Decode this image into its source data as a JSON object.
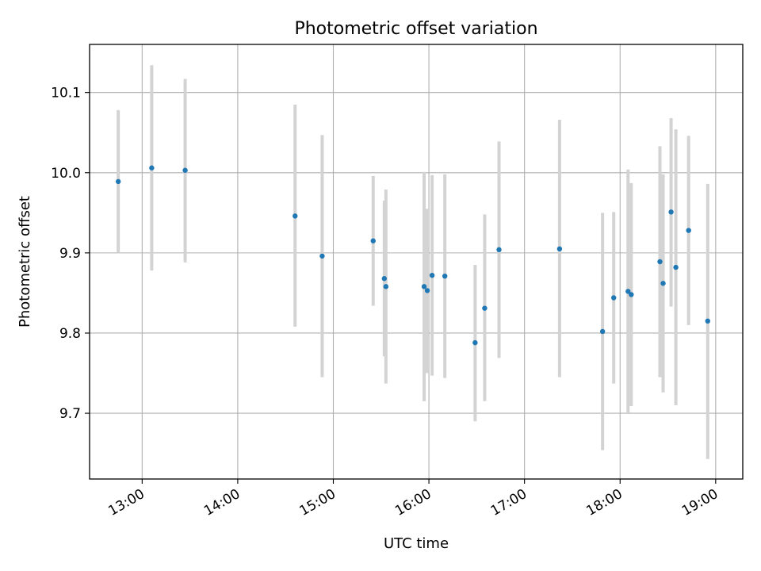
{
  "chart_data": {
    "type": "scatter",
    "title": "Photometric offset variation",
    "xlabel": "UTC time",
    "ylabel": "Photometric offset",
    "x_ticks": [
      "13:00",
      "14:00",
      "15:00",
      "16:00",
      "17:00",
      "18:00",
      "19:00"
    ],
    "y_ticks": [
      "9.7",
      "9.8",
      "9.9",
      "10.0",
      "10.1"
    ],
    "xlim": [
      "12:27",
      "19:17"
    ],
    "ylim": [
      9.618,
      10.16
    ],
    "grid": true,
    "error_bar_color": "#d3d3d3",
    "marker_color": "#1f77b4",
    "points": [
      {
        "x": "12:45",
        "y": 9.989,
        "ylow": 9.9,
        "yhigh": 10.078
      },
      {
        "x": "13:06",
        "y": 10.006,
        "ylow": 9.878,
        "yhigh": 10.134
      },
      {
        "x": "13:27",
        "y": 10.003,
        "ylow": 9.888,
        "yhigh": 10.117
      },
      {
        "x": "14:36",
        "y": 9.946,
        "ylow": 9.808,
        "yhigh": 10.085
      },
      {
        "x": "14:53",
        "y": 9.896,
        "ylow": 9.745,
        "yhigh": 10.047
      },
      {
        "x": "15:25",
        "y": 9.915,
        "ylow": 9.834,
        "yhigh": 9.996
      },
      {
        "x": "15:32",
        "y": 9.868,
        "ylow": 9.771,
        "yhigh": 9.965
      },
      {
        "x": "15:33",
        "y": 9.858,
        "ylow": 9.737,
        "yhigh": 9.979
      },
      {
        "x": "15:57",
        "y": 9.858,
        "ylow": 9.715,
        "yhigh": 10.001
      },
      {
        "x": "15:59",
        "y": 9.853,
        "ylow": 9.75,
        "yhigh": 9.955
      },
      {
        "x": "16:02",
        "y": 9.872,
        "ylow": 9.747,
        "yhigh": 9.997
      },
      {
        "x": "16:10",
        "y": 9.871,
        "ylow": 9.744,
        "yhigh": 9.998
      },
      {
        "x": "16:29",
        "y": 9.788,
        "ylow": 9.69,
        "yhigh": 9.885
      },
      {
        "x": "16:35",
        "y": 9.831,
        "ylow": 9.715,
        "yhigh": 9.948
      },
      {
        "x": "16:44",
        "y": 9.904,
        "ylow": 9.769,
        "yhigh": 10.039
      },
      {
        "x": "17:22",
        "y": 9.905,
        "ylow": 9.745,
        "yhigh": 10.066
      },
      {
        "x": "17:49",
        "y": 9.802,
        "ylow": 9.654,
        "yhigh": 9.95
      },
      {
        "x": "17:56",
        "y": 9.844,
        "ylow": 9.737,
        "yhigh": 9.951
      },
      {
        "x": "18:05",
        "y": 9.852,
        "ylow": 9.701,
        "yhigh": 10.004
      },
      {
        "x": "18:07",
        "y": 9.848,
        "ylow": 9.709,
        "yhigh": 9.987
      },
      {
        "x": "18:25",
        "y": 9.889,
        "ylow": 9.745,
        "yhigh": 10.033
      },
      {
        "x": "18:27",
        "y": 9.862,
        "ylow": 9.726,
        "yhigh": 9.998
      },
      {
        "x": "18:32",
        "y": 9.951,
        "ylow": 9.833,
        "yhigh": 10.068
      },
      {
        "x": "18:35",
        "y": 9.882,
        "ylow": 9.71,
        "yhigh": 10.054
      },
      {
        "x": "18:43",
        "y": 9.928,
        "ylow": 9.81,
        "yhigh": 10.046
      },
      {
        "x": "18:55",
        "y": 9.815,
        "ylow": 9.643,
        "yhigh": 9.986
      }
    ]
  }
}
